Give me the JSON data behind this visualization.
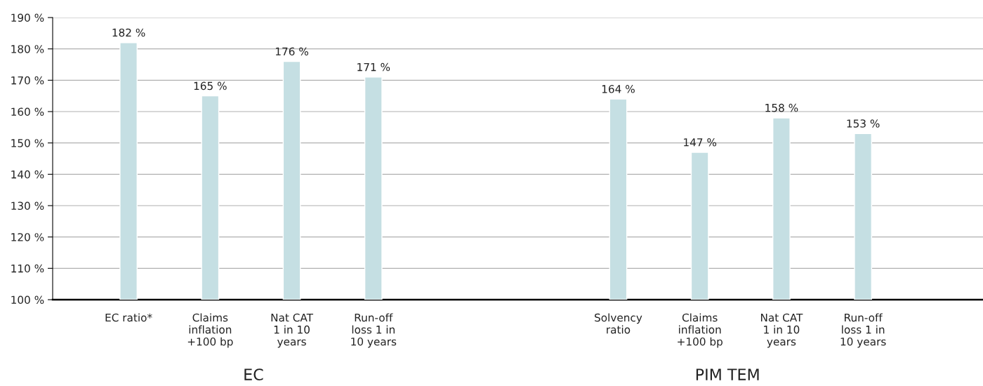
{
  "chart_data": {
    "type": "bar",
    "categories": [
      "EC ratio*",
      "Claims\ninflation\n+100 bp",
      "Nat CAT\n1 in 10\nyears",
      "Run-off\nloss 1 in\n10 years",
      null,
      null,
      "Solvency\nratio",
      "Claims\ninflation\n+100 bp",
      "Nat CAT\n1 in 10\nyears",
      "Run-off\nloss 1 in\n10 years",
      null
    ],
    "values": [
      182,
      165,
      176,
      171,
      null,
      null,
      164,
      147,
      158,
      153,
      null
    ],
    "value_labels": [
      "182 %",
      "165 %",
      "176 %",
      "171 %",
      null,
      null,
      "164 %",
      "147 %",
      "158 %",
      "153 %",
      null
    ],
    "color": "#c5dfe3",
    "ylim": [
      100,
      190
    ],
    "yticks": [
      {
        "value": 100,
        "label": "100 %"
      },
      {
        "value": 110,
        "label": "110 %"
      },
      {
        "value": 120,
        "label": "120 %"
      },
      {
        "value": 130,
        "label": "130 %"
      },
      {
        "value": 140,
        "label": "140 %"
      },
      {
        "value": 150,
        "label": "150 %"
      },
      {
        "value": 160,
        "label": "160 %"
      },
      {
        "value": 170,
        "label": "170 %"
      },
      {
        "value": 180,
        "label": "180 %"
      },
      {
        "value": 190,
        "label": "190 %"
      }
    ],
    "grid": "y",
    "annotations": [
      "EC",
      "PIM TEM"
    ]
  }
}
